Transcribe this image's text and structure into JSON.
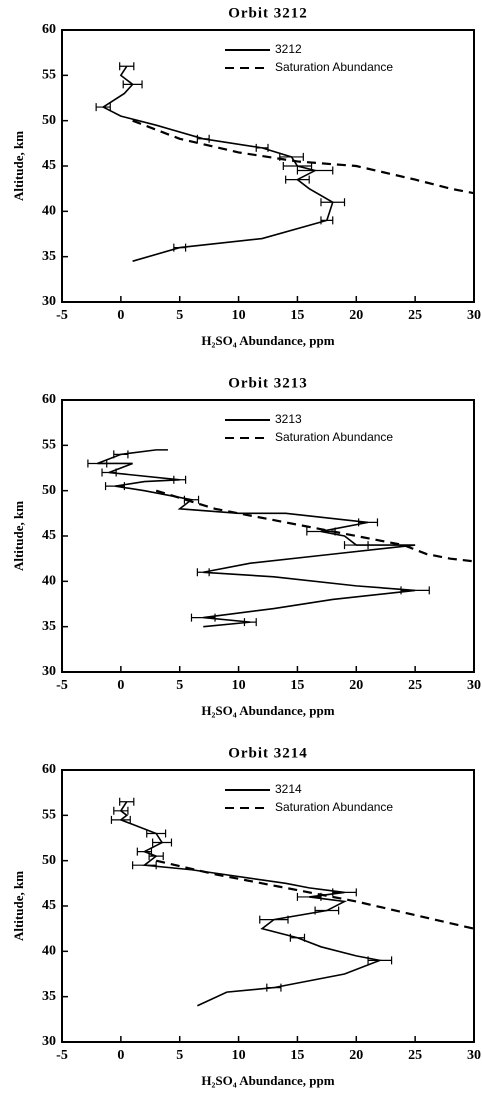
{
  "chart_data": [
    {
      "type": "line",
      "title": "Orbit 3212",
      "xlabel": "H₂SO₄ Abundance, ppm",
      "ylabel": "Altitude, km",
      "xlim": [
        -5,
        30
      ],
      "ylim": [
        30,
        60
      ],
      "xticks": [
        -5,
        0,
        5,
        10,
        15,
        20,
        25,
        30
      ],
      "yticks": [
        30,
        35,
        40,
        45,
        50,
        55,
        60
      ],
      "legend": "upper right",
      "series": [
        {
          "name": "3212",
          "color": "#000000",
          "linestyle": "solid",
          "x": [
            0.5,
            0,
            1,
            0.3,
            -1.5,
            0,
            3,
            7,
            12,
            14.5,
            15,
            16.5,
            15,
            16,
            18,
            17.5,
            12,
            5,
            1
          ],
          "values": [
            56,
            55,
            54,
            53,
            51.5,
            50.5,
            49.5,
            48,
            47,
            46,
            45,
            44.5,
            43.5,
            42.5,
            41,
            39,
            37,
            36,
            34.5
          ],
          "xerr": [
            0.6,
            null,
            0.8,
            null,
            0.6,
            null,
            null,
            0.5,
            0.5,
            1,
            1.2,
            1.5,
            1,
            null,
            1,
            0.5,
            null,
            0.5,
            null
          ]
        },
        {
          "name": "Saturation Abundance",
          "color": "#000000",
          "linestyle": "dashed",
          "x": [
            1,
            5,
            10,
            15,
            20,
            25,
            28,
            30
          ],
          "values": [
            50,
            48,
            46.5,
            45.5,
            45,
            43.5,
            42.5,
            42
          ]
        }
      ]
    },
    {
      "type": "line",
      "title": "Orbit 3213",
      "xlabel": "H₂SO₄ Abundance, ppm",
      "ylabel": "Altitude, km",
      "xlim": [
        -5,
        30
      ],
      "ylim": [
        30,
        60
      ],
      "xticks": [
        -5,
        0,
        5,
        10,
        15,
        20,
        25,
        30
      ],
      "yticks": [
        30,
        35,
        40,
        45,
        50,
        55,
        60
      ],
      "legend": "upper right",
      "series": [
        {
          "name": "3213",
          "color": "#000000",
          "linestyle": "solid",
          "x": [
            4,
            3,
            0,
            -2,
            1,
            -1,
            5,
            2,
            -0.5,
            2,
            6,
            5,
            10,
            14,
            21,
            17,
            19,
            20,
            25,
            18,
            11,
            7,
            13,
            20,
            25,
            18,
            13,
            7,
            11,
            7
          ],
          "values": [
            54.5,
            54.5,
            54,
            53,
            53,
            52,
            51.2,
            51,
            50.5,
            50,
            49,
            48,
            47.5,
            47.5,
            46.5,
            45.5,
            45,
            44,
            44,
            43,
            42,
            41,
            40.5,
            39.5,
            39,
            38,
            37,
            36,
            35.5,
            35
          ],
          "xerr": [
            null,
            null,
            0.6,
            0.8,
            null,
            0.6,
            0.5,
            null,
            0.8,
            null,
            0.6,
            null,
            null,
            null,
            0.8,
            1.2,
            null,
            1,
            null,
            null,
            null,
            0.5,
            null,
            null,
            1.2,
            null,
            null,
            1,
            0.5,
            null
          ]
        },
        {
          "name": "Saturation Abundance",
          "color": "#000000",
          "linestyle": "dashed",
          "x": [
            3,
            8,
            14,
            20,
            24,
            26,
            28,
            30
          ],
          "values": [
            50,
            48,
            46.5,
            45,
            44,
            43,
            42.5,
            42.2
          ]
        }
      ]
    },
    {
      "type": "line",
      "title": "Orbit 3214",
      "xlabel": "H₂SO₄ Abundance, ppm",
      "ylabel": "Altitude, km",
      "xlim": [
        -5,
        30
      ],
      "ylim": [
        30,
        60
      ],
      "xticks": [
        -5,
        0,
        5,
        10,
        15,
        20,
        25,
        30
      ],
      "yticks": [
        30,
        35,
        40,
        45,
        50,
        55,
        60
      ],
      "legend": "upper right",
      "series": [
        {
          "name": "3214",
          "color": "#000000",
          "linestyle": "solid",
          "x": [
            0.5,
            0,
            0.5,
            0,
            1,
            3,
            3.5,
            2,
            3,
            2,
            6,
            14,
            16,
            19,
            16,
            19,
            17.5,
            13,
            12,
            15,
            17,
            20,
            22,
            19,
            13,
            9,
            6.5
          ],
          "values": [
            56.5,
            55.5,
            55,
            54.5,
            54,
            53,
            52,
            51,
            50.5,
            49.5,
            49,
            47.5,
            47,
            46.5,
            46,
            45.5,
            44.5,
            43.5,
            42.5,
            41.5,
            40.5,
            39.5,
            39,
            37.5,
            36,
            35.5,
            34
          ],
          "xerr": [
            0.6,
            0.6,
            null,
            0.8,
            null,
            0.8,
            0.8,
            0.6,
            0.6,
            1,
            null,
            null,
            null,
            1,
            1,
            null,
            1,
            1.2,
            null,
            0.6,
            null,
            null,
            1,
            null,
            0.6,
            null,
            null
          ]
        },
        {
          "name": "Saturation Abundance",
          "color": "#000000",
          "linestyle": "dashed",
          "x": [
            3,
            8,
            14,
            20,
            25,
            30
          ],
          "values": [
            50,
            48.5,
            47,
            45.5,
            44,
            42.5
          ]
        }
      ]
    }
  ]
}
